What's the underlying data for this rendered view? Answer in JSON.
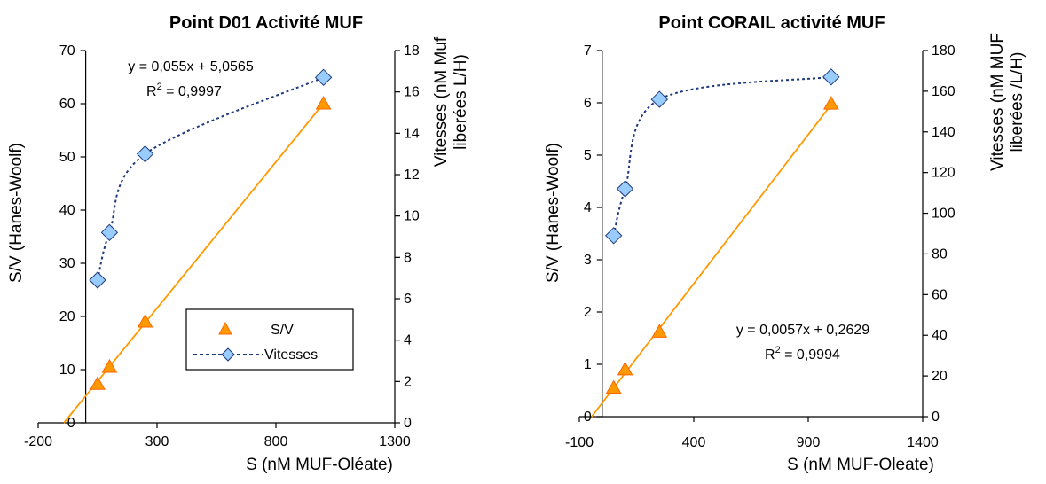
{
  "chart_data": [
    {
      "type": "scatter",
      "title": "Point D01 Activité MUF",
      "xlabel": "S (nM MUF-Oléate)",
      "ylabel": "S/V (Hanes-Woolf)",
      "y2label": [
        "Vitesses (nM Muf",
        "liberées L/H)"
      ],
      "xlim": [
        -200,
        1300
      ],
      "ylim": [
        0,
        70
      ],
      "y2lim": [
        0,
        18
      ],
      "xticks": [
        -200,
        300,
        800,
        1300
      ],
      "yticks": [
        0,
        10,
        20,
        30,
        40,
        50,
        60,
        70
      ],
      "y2ticks": [
        0,
        2,
        4,
        6,
        8,
        10,
        12,
        14,
        16,
        18
      ],
      "grid": false,
      "legend": {
        "placement": "bottom-right",
        "entries": [
          "S/V",
          "Vitesses"
        ]
      },
      "series": [
        {
          "name": "S/V",
          "axis": "left",
          "marker": "triangle",
          "color": "#ff9900",
          "x": [
            50,
            100,
            250,
            1000
          ],
          "y": [
            7.3,
            10.5,
            19.0,
            60.0
          ]
        },
        {
          "name": "Vitesses",
          "axis": "right",
          "marker": "diamond",
          "color": "#99ccff",
          "line_color": "#1f3a7a",
          "x": [
            50,
            100,
            250,
            1000
          ],
          "y": [
            6.9,
            9.2,
            13.0,
            16.7
          ]
        }
      ],
      "trendline": {
        "slope": 0.055,
        "intercept": 5.0565,
        "color": "#ff9900",
        "equation": "y = 0,055x + 5,0565",
        "r2_label": "R",
        "r2_sup": "2",
        "r2_value": " = 0,9997"
      }
    },
    {
      "type": "scatter",
      "title": "Point CORAIL activité MUF",
      "xlabel": "S (nM MUF-Oleate)",
      "ylabel": "S/V (Hanes-Woolf)",
      "y2label": [
        "Vitesses (nM MUF",
        "liberées /L/H)"
      ],
      "xlim": [
        -100,
        1400
      ],
      "ylim": [
        0,
        7
      ],
      "y2lim": [
        0,
        180
      ],
      "xticks": [
        -100,
        400,
        900,
        1400
      ],
      "yticks": [
        0,
        1,
        2,
        3,
        4,
        5,
        6,
        7
      ],
      "y2ticks": [
        0,
        20,
        40,
        60,
        80,
        100,
        120,
        140,
        160,
        180
      ],
      "grid": false,
      "series": [
        {
          "name": "S/V",
          "axis": "left",
          "marker": "triangle",
          "color": "#ff9900",
          "x": [
            50,
            100,
            250,
            1000
          ],
          "y": [
            0.55,
            0.9,
            1.62,
            5.98
          ]
        },
        {
          "name": "Vitesses",
          "axis": "right",
          "marker": "diamond",
          "color": "#99ccff",
          "line_color": "#1f3a7a",
          "x": [
            50,
            100,
            250,
            1000
          ],
          "y": [
            89,
            112,
            156,
            167
          ]
        }
      ],
      "trendline": {
        "slope": 0.0057,
        "intercept": 0.2629,
        "color": "#ff9900",
        "equation": "y = 0,0057x + 0,2629",
        "r2_label": "R",
        "r2_sup": "2",
        "r2_value": " = 0,9994"
      }
    }
  ]
}
